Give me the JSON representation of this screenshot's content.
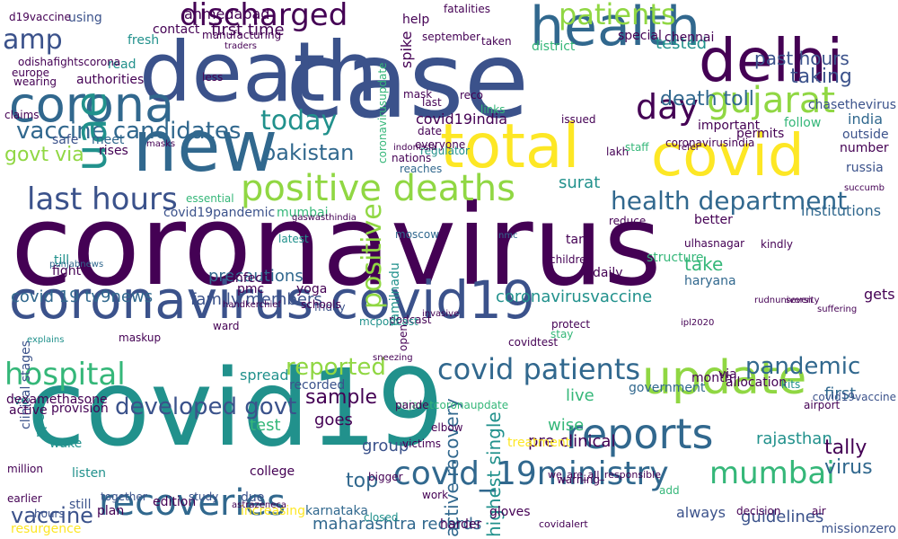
{
  "palette": {
    "deep_purple": "#440154",
    "indigo": "#3b528b",
    "blue": "#31688e",
    "teal": "#21918c",
    "green": "#35b779",
    "lime": "#90d743",
    "yellow": "#fde725"
  },
  "words": [
    {
      "text": "coronavirus",
      "color": "#440154"
    },
    {
      "text": "case",
      "color": "#3b528b"
    },
    {
      "text": "covid19",
      "color": "#21918c"
    },
    {
      "text": "death",
      "color": "#3b528b"
    },
    {
      "text": "new",
      "color": "#31688e"
    },
    {
      "text": "total",
      "color": "#fde725"
    },
    {
      "text": "covid",
      "color": "#fde725"
    },
    {
      "text": "delhi",
      "color": "#440154"
    },
    {
      "text": "health",
      "color": "#31688e"
    },
    {
      "text": "coronavirus covid19",
      "color": "#3b528b"
    },
    {
      "text": "update",
      "color": "#90d743"
    },
    {
      "text": "reports",
      "color": "#31688e"
    },
    {
      "text": "corona",
      "color": "#31688e"
    },
    {
      "text": "positive deaths",
      "color": "#90d743"
    },
    {
      "text": "last hours",
      "color": "#3b528b"
    },
    {
      "text": "recoveries",
      "color": "#31688e"
    },
    {
      "text": "covid_19ministry",
      "color": "#31688e"
    },
    {
      "text": "hospital",
      "color": "#35b779"
    },
    {
      "text": "covid patients",
      "color": "#31688e"
    },
    {
      "text": "mumbai",
      "color": "#35b779"
    },
    {
      "text": "gujarat",
      "color": "#90d743"
    },
    {
      "text": "day",
      "color": "#440154"
    },
    {
      "text": "patients",
      "color": "#90d743"
    },
    {
      "text": "discharged",
      "color": "#440154"
    },
    {
      "text": "today",
      "color": "#21918c"
    },
    {
      "text": "vaccine candidates",
      "color": "#31688e"
    },
    {
      "text": "health department",
      "color": "#31688e"
    },
    {
      "text": "pandemic",
      "color": "#31688e"
    },
    {
      "text": "reported",
      "color": "#90d743"
    },
    {
      "text": "developed govt",
      "color": "#3b528b"
    },
    {
      "text": "sample",
      "color": "#440154"
    },
    {
      "text": "amp",
      "color": "#3b528b"
    },
    {
      "text": "uae",
      "color": "#21918c"
    },
    {
      "text": "positive",
      "color": "#90d743"
    },
    {
      "text": "pakistan",
      "color": "#31688e"
    },
    {
      "text": "govt via",
      "color": "#90d743"
    },
    {
      "text": "death toll",
      "color": "#31688e"
    },
    {
      "text": "taking",
      "color": "#3b528b"
    },
    {
      "text": "past hours",
      "color": "#3b528b"
    },
    {
      "text": "tested",
      "color": "#21918c"
    },
    {
      "text": "vaccine",
      "color": "#3b528b"
    },
    {
      "text": "top",
      "color": "#31688e"
    },
    {
      "text": "maharashtra records",
      "color": "#31688e"
    },
    {
      "text": "guidelines",
      "color": "#3b528b"
    },
    {
      "text": "tally",
      "color": "#440154"
    },
    {
      "text": "virus",
      "color": "#31688e"
    },
    {
      "text": "rajasthan",
      "color": "#21918c"
    },
    {
      "text": "first time",
      "color": "#440154"
    },
    {
      "text": "ahmedabad",
      "color": "#440154"
    },
    {
      "text": "covid19india",
      "color": "#440154"
    },
    {
      "text": "surat",
      "color": "#21918c"
    },
    {
      "text": "coronavirusvaccine",
      "color": "#21918c"
    },
    {
      "text": "covid 19 tv9news",
      "color": "#31688e"
    },
    {
      "text": "family members",
      "color": "#3b528b"
    },
    {
      "text": "precautions",
      "color": "#31688e"
    },
    {
      "text": "active recovery",
      "color": "#31688e"
    },
    {
      "text": "highest single",
      "color": "#21918c"
    },
    {
      "text": "pre clinical",
      "color": "#440154"
    },
    {
      "text": "wise",
      "color": "#35b779"
    },
    {
      "text": "group",
      "color": "#3b528b"
    },
    {
      "text": "test",
      "color": "#35b779"
    },
    {
      "text": "goes",
      "color": "#440154"
    },
    {
      "text": "spread",
      "color": "#21918c"
    },
    {
      "text": "take",
      "color": "#35b779"
    },
    {
      "text": "live",
      "color": "#35b779"
    },
    {
      "text": "india",
      "color": "#31688e"
    },
    {
      "text": "always",
      "color": "#3b528b"
    },
    {
      "text": "government",
      "color": "#31688e"
    },
    {
      "text": "first",
      "color": "#31688e"
    },
    {
      "text": "gets",
      "color": "#440154"
    },
    {
      "text": "number",
      "color": "#440154"
    },
    {
      "text": "russia",
      "color": "#3b528b"
    },
    {
      "text": "institutions",
      "color": "#31688e"
    },
    {
      "text": "permits",
      "color": "#440154"
    },
    {
      "text": "follow",
      "color": "#35b779"
    },
    {
      "text": "outside",
      "color": "#3b528b"
    },
    {
      "text": "fresh",
      "color": "#21918c"
    },
    {
      "text": "read",
      "color": "#21918c"
    },
    {
      "text": "authorities",
      "color": "#440154"
    },
    {
      "text": "meet",
      "color": "#31688e"
    },
    {
      "text": "safe",
      "color": "#3b528b"
    },
    {
      "text": "rises",
      "color": "#440154"
    },
    {
      "text": "pmc",
      "color": "#440154"
    },
    {
      "text": "infect",
      "color": "#440154"
    },
    {
      "text": "recorded",
      "color": "#3b528b"
    },
    {
      "text": "college",
      "color": "#440154"
    },
    {
      "text": "due",
      "color": "#3b528b"
    },
    {
      "text": "edition",
      "color": "#440154"
    },
    {
      "text": "still",
      "color": "#3b528b"
    },
    {
      "text": "listen",
      "color": "#21918c"
    },
    {
      "text": "wake",
      "color": "#21918c"
    },
    {
      "text": "fight",
      "color": "#440154"
    },
    {
      "text": "till",
      "color": "#21918c"
    },
    {
      "text": "clinical stages",
      "color": "#3b528b"
    },
    {
      "text": "provision",
      "color": "#440154"
    },
    {
      "text": "ppe",
      "color": "#21918c"
    },
    {
      "text": "ve",
      "color": "#21918c"
    },
    {
      "text": "harder",
      "color": "#440154"
    },
    {
      "text": "treatment",
      "color": "#fde725"
    },
    {
      "text": "allocation",
      "color": "#440154"
    },
    {
      "text": "special",
      "color": "#440154"
    },
    {
      "text": "chennai",
      "color": "#440154"
    },
    {
      "text": "district",
      "color": "#35b779"
    },
    {
      "text": "help",
      "color": "#440154"
    },
    {
      "text": "using",
      "color": "#3b528b"
    },
    {
      "text": "contact",
      "color": "#440154"
    },
    {
      "text": "coronavirusupdate",
      "color": "#35b779"
    },
    {
      "text": "daily",
      "color": "#440154"
    },
    {
      "text": "haryana",
      "color": "#31688e"
    },
    {
      "text": "tamilnadu",
      "color": "#21918c"
    },
    {
      "text": "tan",
      "color": "#440154"
    },
    {
      "text": "mask",
      "color": "#440154"
    },
    {
      "text": "everyone",
      "color": "#440154"
    },
    {
      "text": "nations",
      "color": "#440154"
    },
    {
      "text": "reaches",
      "color": "#31688e"
    },
    {
      "text": "lakh",
      "color": "#440154"
    },
    {
      "text": "yoga",
      "color": "#440154"
    },
    {
      "text": "friday",
      "color": "#3b528b"
    },
    {
      "text": "schools",
      "color": "#440154"
    },
    {
      "text": "podcast",
      "color": "#440154"
    },
    {
      "text": "mcpodcast",
      "color": "#21918c"
    },
    {
      "text": "open",
      "color": "#440154"
    },
    {
      "text": "bigger",
      "color": "#440154"
    },
    {
      "text": "children",
      "color": "#440154"
    },
    {
      "text": "stay",
      "color": "#35b779"
    },
    {
      "text": "protect",
      "color": "#440154"
    },
    {
      "text": "kits",
      "color": "#21918c"
    },
    {
      "text": "covid19vaccine",
      "color": "#3b528b"
    },
    {
      "text": "gujaratcoronaupdate",
      "color": "#35b779"
    },
    {
      "text": "mumbai",
      "color": "#35b779"
    },
    {
      "text": "spike",
      "color": "#440154"
    },
    {
      "text": "structure",
      "color": "#35b779"
    },
    {
      "text": "covid19pandemic",
      "color": "#3b528b"
    },
    {
      "text": "latest",
      "color": "#21918c"
    },
    {
      "text": "essential",
      "color": "#35b779"
    },
    {
      "text": "better",
      "color": "#440154"
    },
    {
      "text": "coronavirusindia",
      "color": "#440154"
    },
    {
      "text": "important",
      "color": "#440154"
    },
    {
      "text": "staff",
      "color": "#35b779"
    },
    {
      "text": "moscow",
      "color": "#31688e"
    },
    {
      "text": "date",
      "color": "#440154"
    },
    {
      "text": "last",
      "color": "#440154"
    },
    {
      "text": "work",
      "color": "#440154"
    },
    {
      "text": "closed",
      "color": "#21918c"
    },
    {
      "text": "explains",
      "color": "#21918c"
    },
    {
      "text": "maskup",
      "color": "#440154"
    },
    {
      "text": "ward",
      "color": "#440154"
    },
    {
      "text": "add",
      "color": "#35b779"
    },
    {
      "text": "air",
      "color": "#440154"
    },
    {
      "text": "kindly",
      "color": "#440154"
    },
    {
      "text": "issued",
      "color": "#440154"
    },
    {
      "text": "pande",
      "color": "#440154"
    },
    {
      "text": "elbow",
      "color": "#440154"
    },
    {
      "text": "covidalert",
      "color": "#440154"
    },
    {
      "text": "gloves",
      "color": "#440154"
    },
    {
      "text": "we_are_all_responsible",
      "color": "#440154"
    },
    {
      "text": "resurgence",
      "color": "#fde725"
    },
    {
      "text": "plan",
      "color": "#440154"
    },
    {
      "text": "increasing",
      "color": "#fde725"
    },
    {
      "text": "karnataka",
      "color": "#31688e"
    },
    {
      "text": "missionzero",
      "color": "#3b528b"
    },
    {
      "text": "chasethevirus",
      "color": "#3b528b"
    },
    {
      "text": "via",
      "color": "#440154"
    },
    {
      "text": "month",
      "color": "#440154"
    },
    {
      "text": "dexamethasone",
      "color": "#440154"
    },
    {
      "text": "active",
      "color": "#440154"
    },
    {
      "text": "hours",
      "color": "#3b528b"
    },
    {
      "text": "earlier",
      "color": "#440154"
    },
    {
      "text": "million",
      "color": "#440154"
    },
    {
      "text": "together",
      "color": "#3b528b"
    },
    {
      "text": "study",
      "color": "#3b528b"
    },
    {
      "text": "manufacturing",
      "color": "#440154"
    },
    {
      "text": "traders",
      "color": "#440154"
    },
    {
      "text": "odishafightscorona",
      "color": "#440154"
    },
    {
      "text": "d19vaccine",
      "color": "#440154"
    },
    {
      "text": "wearing",
      "color": "#440154"
    },
    {
      "text": "europe",
      "color": "#440154"
    },
    {
      "text": "claims",
      "color": "#440154"
    },
    {
      "text": "less",
      "color": "#440154"
    },
    {
      "text": "invasive",
      "color": "#440154"
    },
    {
      "text": "links",
      "color": "#35b779"
    },
    {
      "text": "reco",
      "color": "#440154"
    },
    {
      "text": "regulator",
      "color": "#21918c"
    },
    {
      "text": "fatalities",
      "color": "#440154"
    },
    {
      "text": "succumb",
      "color": "#440154"
    },
    {
      "text": "reduce",
      "color": "#440154"
    },
    {
      "text": "ulhasnagar",
      "color": "#440154"
    },
    {
      "text": "september",
      "color": "#440154"
    },
    {
      "text": "taken",
      "color": "#440154"
    },
    {
      "text": "decision",
      "color": "#440154"
    },
    {
      "text": "punjabnews",
      "color": "#31688e"
    },
    {
      "text": "suffering",
      "color": "#440154"
    },
    {
      "text": "airport",
      "color": "#440154"
    },
    {
      "text": "indonesia",
      "color": "#440154"
    },
    {
      "text": "nmc",
      "color": "#31688e"
    },
    {
      "text": "gaswasthindia",
      "color": "#440154"
    },
    {
      "text": "sneezing",
      "color": "#440154"
    },
    {
      "text": "covidtest",
      "color": "#440154"
    },
    {
      "text": "warning",
      "color": "#440154"
    },
    {
      "text": "victims",
      "color": "#440154"
    },
    {
      "text": "astrazeneca",
      "color": "#440154"
    },
    {
      "text": "handkerchief",
      "color": "#440154"
    },
    {
      "text": "refer",
      "color": "#440154"
    },
    {
      "text": "ipl2020",
      "color": "#440154"
    },
    {
      "text": "masks",
      "color": "#440154"
    },
    {
      "text": "rudnuniversity",
      "color": "#440154"
    },
    {
      "text": "seven",
      "color": "#440154"
    },
    {
      "text": "anterior",
      "color": "#440154"
    },
    {
      "text": "convalescent",
      "color": "#440154"
    },
    {
      "text": "administration",
      "color": "#440154"
    },
    {
      "text": "trendingnow",
      "color": "#440154"
    },
    {
      "text": "ayurvedic",
      "color": "#440154"
    }
  ]
}
